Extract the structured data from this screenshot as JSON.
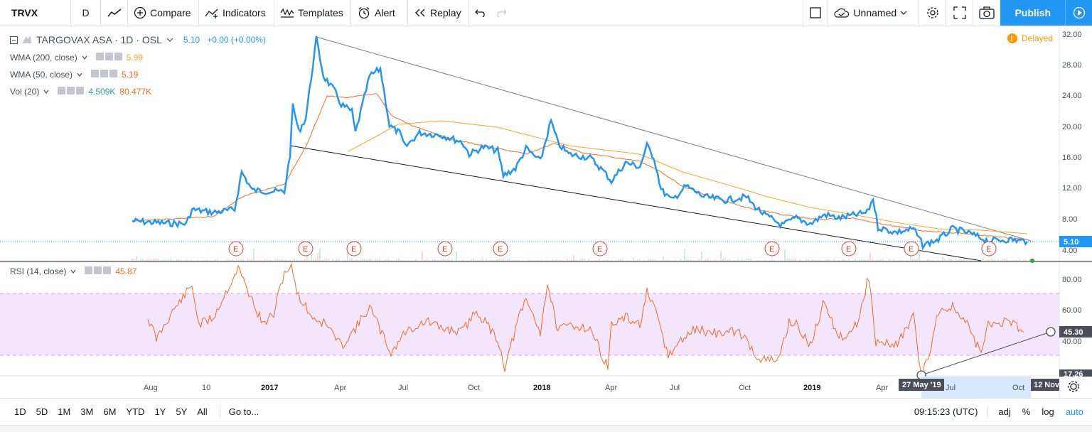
{
  "toolbar": {
    "symbol": "TRVX",
    "interval": "D",
    "compare": "Compare",
    "indicators": "Indicators",
    "templates": "Templates",
    "alert": "Alert",
    "replay": "Replay",
    "layout_name": "Unnamed",
    "publish": "Publish"
  },
  "legend": {
    "title": "TARGOVAX ASA · 1D · OSL",
    "price": "5.10",
    "change": "+0.00 (+0.00%)",
    "wma200_label": "WMA (200, close)",
    "wma200_value": "5.99",
    "wma50_label": "WMA (50, close)",
    "wma50_value": "5.19",
    "vol_label": "Vol (20)",
    "vol_value1": "4.509K",
    "vol_value2": "80.477K",
    "rsi_label": "RSI (14, close)",
    "rsi_value": "45.87",
    "delayed": "Delayed"
  },
  "price_axis": [
    "32.00",
    "28.00",
    "24.00",
    "20.00",
    "16.00",
    "12.00",
    "8.00",
    "4.00"
  ],
  "price_tag": "5.10",
  "rsi_axis": [
    "80.00",
    "60.00",
    "40.00"
  ],
  "rsi_tag1": "45.30",
  "rsi_tag2": "17.26",
  "time_axis": [
    "Aug",
    "10",
    "2017",
    "Apr",
    "Jul",
    "Oct",
    "2018",
    "Apr",
    "Jul",
    "Oct",
    "2019",
    "Apr",
    "Jul",
    "Oct"
  ],
  "time_tag1": "27 May '19",
  "time_tag2": "12 Nov",
  "earnings_marker": "E",
  "bottom": {
    "ranges": [
      "1D",
      "5D",
      "1M",
      "3M",
      "6M",
      "YTD",
      "1Y",
      "5Y",
      "All"
    ],
    "goto": "Go to...",
    "clock": "09:15:23 (UTC)",
    "adj": "adj",
    "pct": "%",
    "log": "log",
    "auto": "auto"
  },
  "colors": {
    "price": "#2196f3",
    "wma200": "#f5a623",
    "wma50": "#f26b21",
    "rsi": "#f26b21",
    "rsi_band": "#f3e5fb",
    "accent": "#2196f3"
  }
}
